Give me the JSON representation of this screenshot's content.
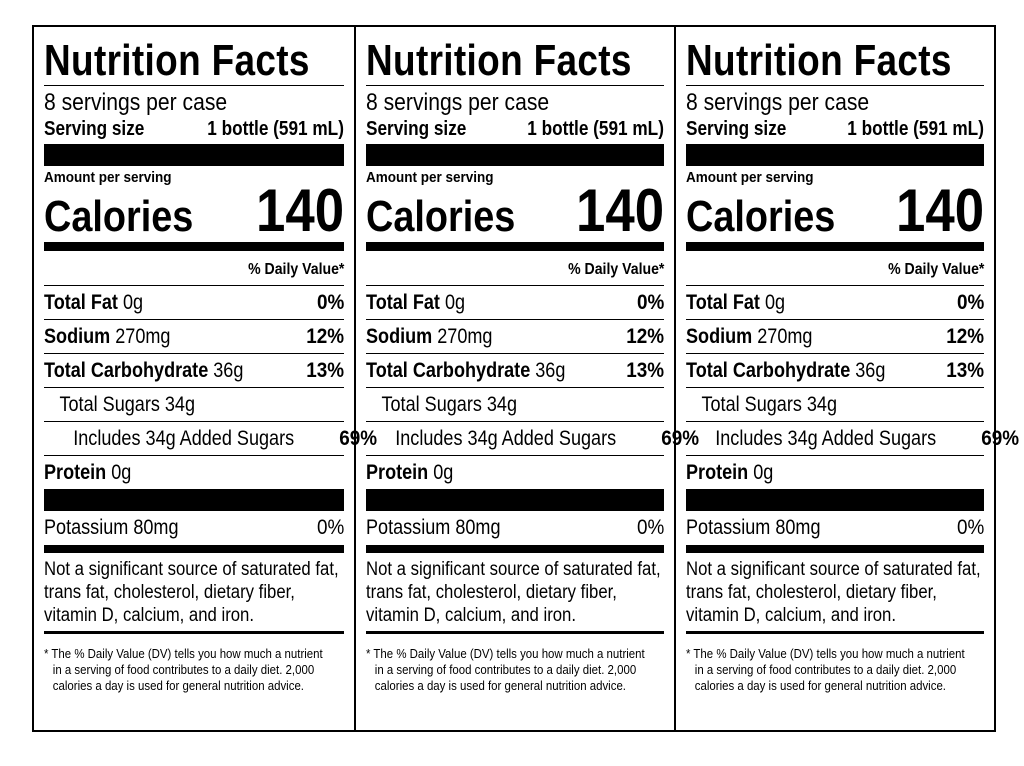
{
  "label": {
    "title": "Nutrition Facts",
    "servings": "8 servings per case",
    "serving_size_label": "Serving size",
    "serving_size_value": "1 bottle (591 mL)",
    "amount_per_serving": "Amount per serving",
    "calories_label": "Calories",
    "calories_value": "140",
    "daily_value_header": "% Daily Value*",
    "total_fat": {
      "name": "Total Fat",
      "amount": "0g",
      "dv": "0%"
    },
    "sodium": {
      "name": "Sodium",
      "amount": "270mg",
      "dv": "12%"
    },
    "total_carbohydrate": {
      "name": "Total Carbohydrate",
      "amount": "36g",
      "dv": "13%"
    },
    "total_sugars": {
      "text": "Total Sugars 34g"
    },
    "added_sugars": {
      "text": "Includes 34g Added Sugars",
      "dv": "69%"
    },
    "protein": {
      "name": "Protein",
      "amount": "0g"
    },
    "potassium": {
      "text": "Potassium 80mg",
      "dv": "0%"
    },
    "not_significant": [
      "Not a significant source of saturated fat,",
      "trans fat, cholesterol, dietary fiber,",
      "vitamin D, calcium, and iron."
    ],
    "footnote": [
      "* The % Daily Value (DV) tells you how much a nutrient",
      "in a serving of food contributes to a daily diet. 2,000",
      "calories a day is used for general nutrition advice."
    ]
  },
  "panel_count": 3
}
